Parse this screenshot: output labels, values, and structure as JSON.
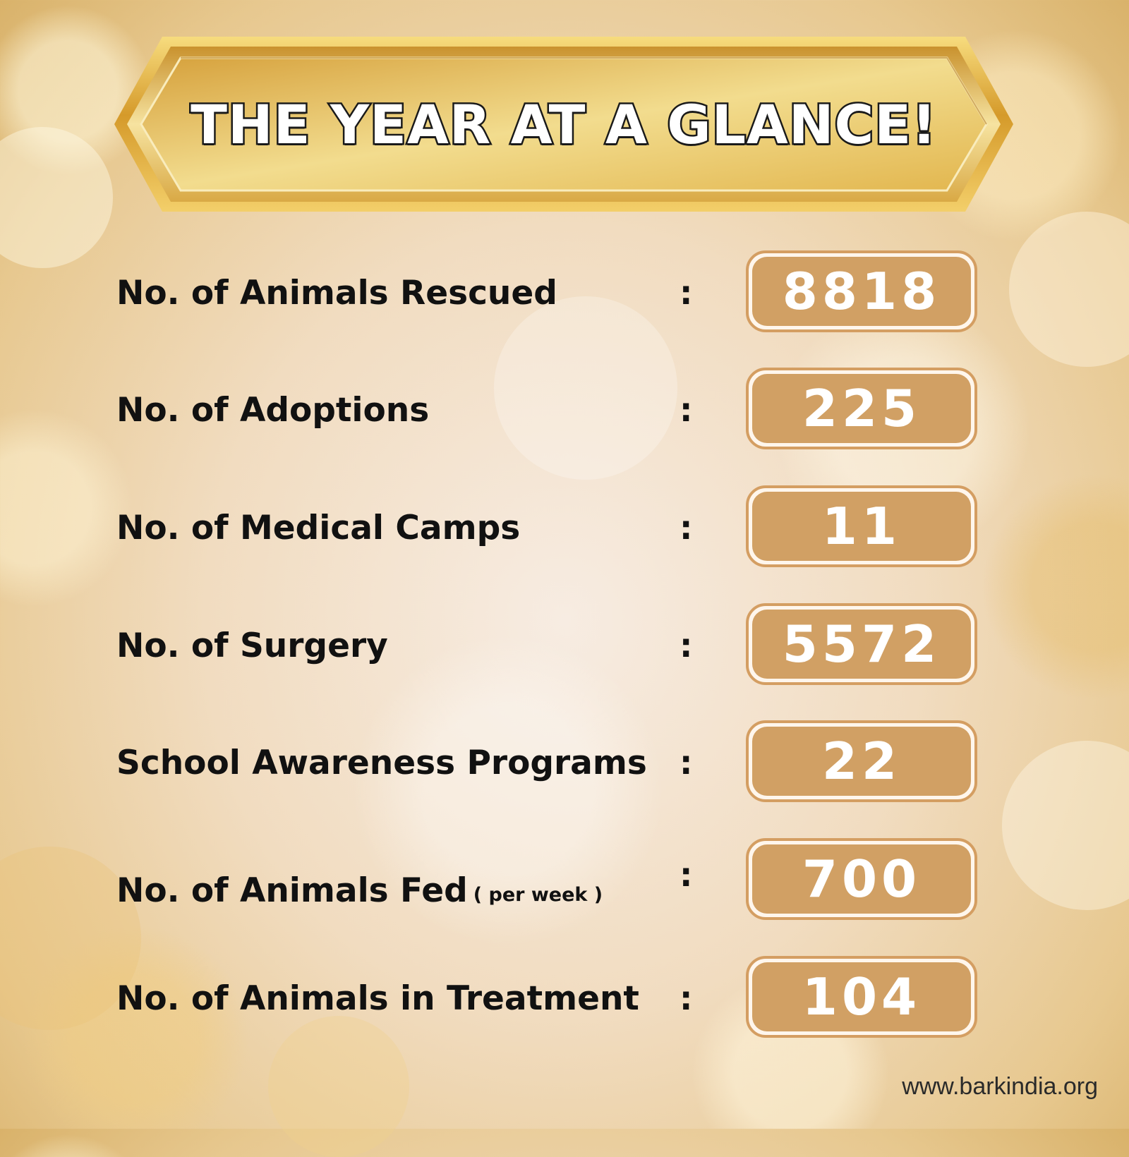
{
  "banner": {
    "title": "THE YEAR AT A GLANCE!"
  },
  "stats": [
    {
      "label": "No. of Animals Rescued",
      "note": "",
      "value": "8818"
    },
    {
      "label": "No. of Adoptions",
      "note": "",
      "value": "225"
    },
    {
      "label": "No. of Medical Camps",
      "note": "",
      "value": "11"
    },
    {
      "label": "No. of Surgery",
      "note": "",
      "value": "5572"
    },
    {
      "label": "School Awareness Programs",
      "note": "",
      "value": "22"
    },
    {
      "label": "No. of Animals Fed",
      "note": "( per week )",
      "value": "700"
    },
    {
      "label": "No. of Animals in Treatment",
      "note": "",
      "value": "104"
    }
  ],
  "separator": ":",
  "footer": {
    "website": "www.barkindia.org"
  },
  "colors": {
    "gold": "#e2b646",
    "value_box": "#d1a064",
    "text": "#111111"
  }
}
